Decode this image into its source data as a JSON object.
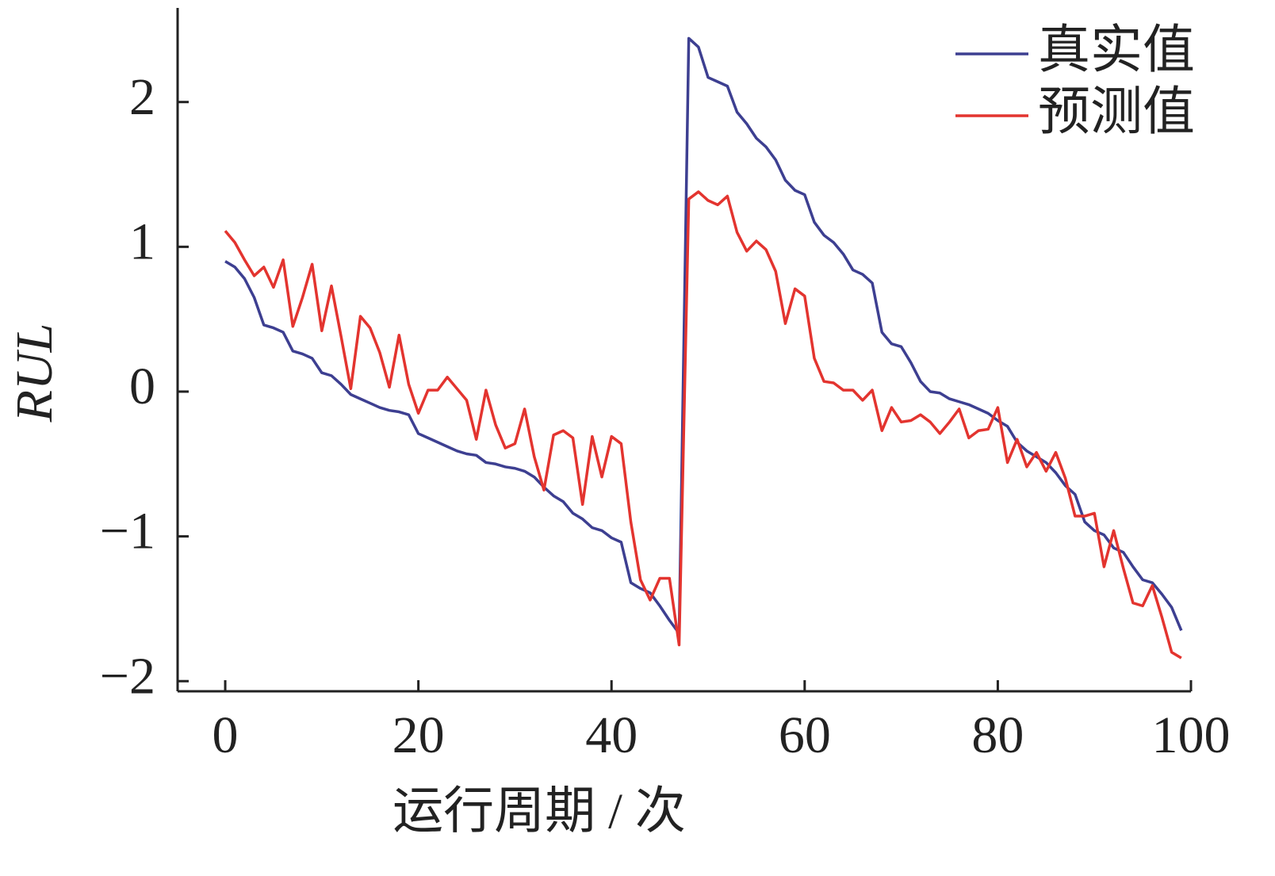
{
  "chart_data": {
    "type": "line",
    "x_label": "运行周期 / 次",
    "y_label": "RUL",
    "x": [
      0,
      1,
      2,
      3,
      4,
      5,
      6,
      7,
      8,
      9,
      10,
      11,
      12,
      13,
      14,
      15,
      16,
      17,
      18,
      19,
      20,
      21,
      22,
      23,
      24,
      25,
      26,
      27,
      28,
      29,
      30,
      31,
      32,
      33,
      34,
      35,
      36,
      37,
      38,
      39,
      40,
      41,
      42,
      43,
      44,
      45,
      46,
      47,
      48,
      49,
      50,
      51,
      52,
      53,
      54,
      55,
      56,
      57,
      58,
      59,
      60,
      61,
      62,
      63,
      64,
      65,
      66,
      67,
      68,
      69,
      70,
      71,
      72,
      73,
      74,
      75,
      76,
      77,
      78,
      79,
      80,
      81,
      82,
      83,
      84,
      85,
      86,
      87,
      88,
      89,
      90,
      91,
      92,
      93,
      94,
      95,
      96,
      97,
      98,
      99
    ],
    "series": [
      {
        "name": "真实值",
        "color": "#3d3f91",
        "values": [
          0.9,
          0.86,
          0.78,
          0.65,
          0.46,
          0.44,
          0.41,
          0.28,
          0.26,
          0.23,
          0.13,
          0.11,
          0.05,
          -0.02,
          -0.05,
          -0.08,
          -0.11,
          -0.13,
          -0.14,
          -0.16,
          -0.29,
          -0.32,
          -0.35,
          -0.38,
          -0.41,
          -0.43,
          -0.44,
          -0.49,
          -0.5,
          -0.52,
          -0.53,
          -0.55,
          -0.59,
          -0.66,
          -0.72,
          -0.76,
          -0.84,
          -0.88,
          -0.94,
          -0.96,
          -1.01,
          -1.04,
          -1.32,
          -1.36,
          -1.39,
          -1.48,
          -1.58,
          -1.67,
          2.44,
          2.38,
          2.17,
          2.14,
          2.11,
          1.93,
          1.85,
          1.75,
          1.69,
          1.6,
          1.46,
          1.39,
          1.36,
          1.17,
          1.08,
          1.03,
          0.95,
          0.84,
          0.81,
          0.75,
          0.41,
          0.33,
          0.31,
          0.2,
          0.07,
          0.0,
          -0.01,
          -0.05,
          -0.07,
          -0.09,
          -0.12,
          -0.15,
          -0.2,
          -0.24,
          -0.35,
          -0.41,
          -0.45,
          -0.49,
          -0.56,
          -0.65,
          -0.71,
          -0.9,
          -0.96,
          -0.99,
          -1.08,
          -1.11,
          -1.21,
          -1.3,
          -1.32,
          -1.4,
          -1.49,
          -1.65
        ]
      },
      {
        "name": "预测值",
        "color": "#e3342f",
        "values": [
          1.11,
          1.03,
          0.91,
          0.8,
          0.86,
          0.72,
          0.91,
          0.45,
          0.65,
          0.88,
          0.42,
          0.73,
          0.38,
          0.02,
          0.52,
          0.44,
          0.27,
          0.03,
          0.39,
          0.05,
          -0.15,
          0.01,
          0.01,
          0.1,
          0.02,
          -0.06,
          -0.33,
          0.01,
          -0.23,
          -0.39,
          -0.36,
          -0.12,
          -0.45,
          -0.68,
          -0.3,
          -0.27,
          -0.32,
          -0.78,
          -0.31,
          -0.59,
          -0.31,
          -0.36,
          -0.9,
          -1.3,
          -1.44,
          -1.29,
          -1.29,
          -1.75,
          1.33,
          1.38,
          1.32,
          1.29,
          1.35,
          1.1,
          0.97,
          1.04,
          0.98,
          0.83,
          0.47,
          0.71,
          0.66,
          0.23,
          0.07,
          0.06,
          0.01,
          0.01,
          -0.06,
          0.01,
          -0.27,
          -0.11,
          -0.21,
          -0.2,
          -0.16,
          -0.21,
          -0.29,
          -0.21,
          -0.12,
          -0.32,
          -0.27,
          -0.26,
          -0.11,
          -0.49,
          -0.33,
          -0.52,
          -0.42,
          -0.55,
          -0.42,
          -0.6,
          -0.86,
          -0.86,
          -0.84,
          -1.21,
          -0.96,
          -1.22,
          -1.46,
          -1.48,
          -1.34,
          -1.56,
          -1.8,
          -1.84
        ]
      }
    ],
    "xlim": [
      -4.93,
      100
    ],
    "ylim": [
      -2.07,
      2.65
    ],
    "xticks": [
      0,
      20,
      40,
      60,
      80,
      100
    ],
    "yticks": [
      {
        "value": -2,
        "label": "−2"
      },
      {
        "value": -1,
        "label": "−1"
      },
      0,
      1,
      2
    ],
    "legend": "upper right"
  }
}
